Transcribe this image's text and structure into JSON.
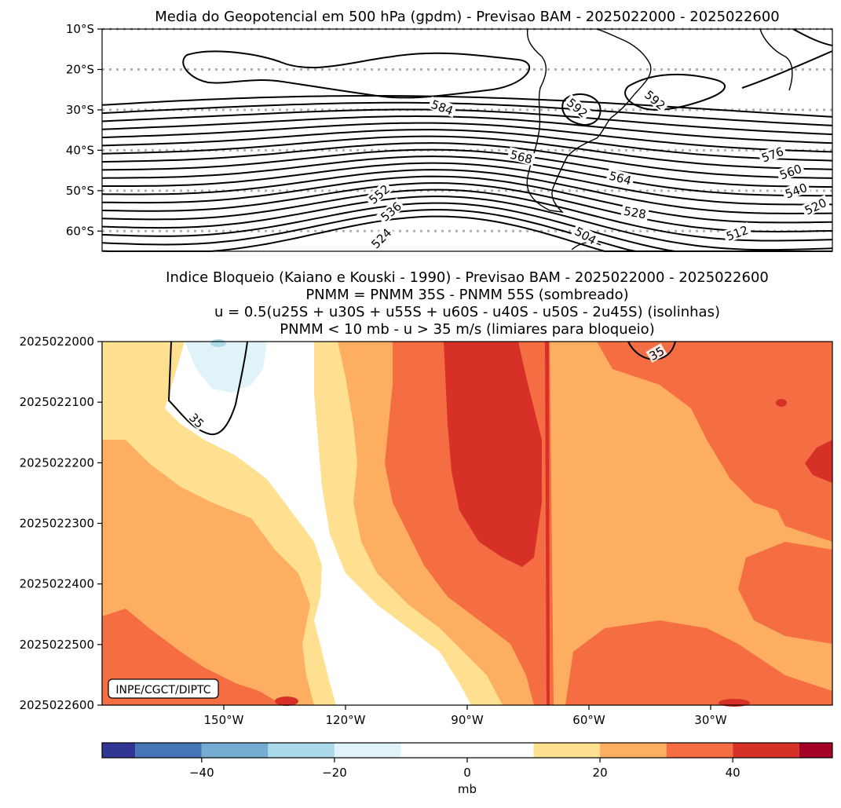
{
  "chart_data": [
    {
      "type": "contour",
      "title": "Media do Geopotencial em 500 hPa (gpdm) - Previsao BAM - 2025022000 - 2025022600",
      "ylabel": "",
      "ylim": [
        -65,
        -10
      ],
      "xlim": [
        -180,
        0
      ],
      "y_ticks": [
        -10,
        -20,
        -30,
        -40,
        -50,
        -60
      ],
      "y_tick_labels": [
        "10°S",
        "20°S",
        "30°S",
        "40°S",
        "50°S",
        "60°S"
      ],
      "gridlines": "dotted-latitude",
      "contour_interval": 4,
      "contour_labels": [
        "592",
        "592",
        "584",
        "576",
        "568",
        "564",
        "560",
        "552",
        "540",
        "536",
        "528",
        "524",
        "520",
        "512",
        "504"
      ]
    },
    {
      "type": "hovmoller-contourf",
      "title_lines": [
        "Indice Bloqueio (Kaiano e Kouski - 1990) - Previsao BAM - 2025022000 - 2025022600",
        "PNMM = PNMM 35S - PNMM 55S (sombreado)",
        "u = 0.5(u25S + u30S + u55S + u60S - u40S - u50S - 2u45S) (isolinhas)",
        "PNMM < 10 mb - u > 35 m/s (limiares para bloqueio)"
      ],
      "xlim": [
        -180,
        0
      ],
      "x_ticks": [
        -150,
        -120,
        -90,
        -60,
        -30
      ],
      "x_tick_labels": [
        "150°W",
        "120°W",
        "90°W",
        "60°W",
        "30°W"
      ],
      "y_tick_labels": [
        "2025022000",
        "2025022100",
        "2025022200",
        "2025022300",
        "2025022400",
        "2025022500",
        "2025022600"
      ],
      "contour_labels": [
        "35",
        "35"
      ],
      "levels": [
        -55,
        -50,
        -40,
        -30,
        -20,
        -10,
        10,
        20,
        30,
        40,
        50,
        55
      ],
      "colors": [
        "#313695",
        "#4575b4",
        "#74add1",
        "#abd9e9",
        "#e0f3f8",
        "#ffffff",
        "#fee090",
        "#fdae61",
        "#f46d43",
        "#d73027",
        "#a50026"
      ],
      "colorbar_ticks": [
        -40,
        -20,
        0,
        20,
        40
      ],
      "colorbar_tick_labels": [
        "−40",
        "−20",
        "0",
        "20",
        "40"
      ],
      "colorbar_label": "mb",
      "credit": "INPE/CGCT/DIPTC"
    }
  ]
}
